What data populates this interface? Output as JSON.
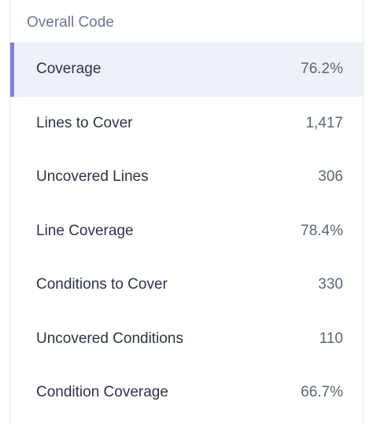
{
  "section": {
    "title": "Overall Code"
  },
  "metrics": [
    {
      "label": "Coverage",
      "value": "76.2%",
      "selected": true
    },
    {
      "label": "Lines to Cover",
      "value": "1,417",
      "selected": false
    },
    {
      "label": "Uncovered Lines",
      "value": "306",
      "selected": false
    },
    {
      "label": "Line Coverage",
      "value": "78.4%",
      "selected": false
    },
    {
      "label": "Conditions to Cover",
      "value": "330",
      "selected": false
    },
    {
      "label": "Uncovered Conditions",
      "value": "110",
      "selected": false
    },
    {
      "label": "Condition Coverage",
      "value": "66.7%",
      "selected": false
    }
  ],
  "colors": {
    "selected_background": "#eef1f8",
    "selected_accent": "#7b84d6",
    "section_title": "#6b7a90"
  }
}
